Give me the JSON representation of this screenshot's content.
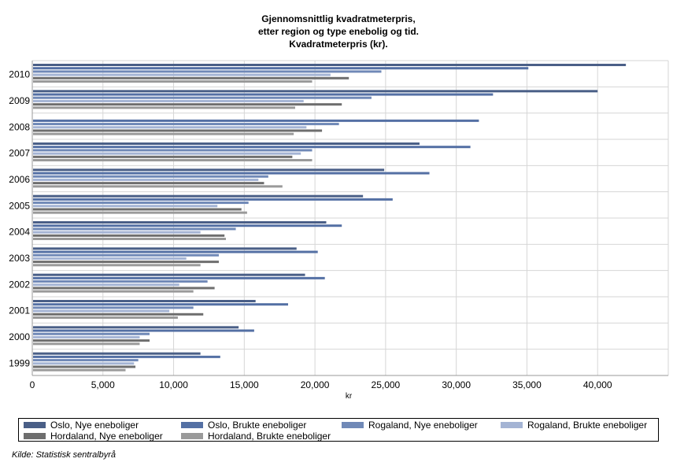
{
  "chart_data": {
    "type": "bar",
    "orientation": "horizontal",
    "title_lines": [
      "Gjennomsnittlig kvadratmeterpris,",
      "etter region og type enebolig og tid.",
      "Kvadratmeterpris (kr)."
    ],
    "xlabel": "kr",
    "xlim": [
      0,
      45000
    ],
    "xticks": [
      0,
      5000,
      10000,
      15000,
      20000,
      25000,
      30000,
      35000,
      40000
    ],
    "xtick_labels": [
      "0",
      "5,000",
      "10,000",
      "15,000",
      "20,000",
      "25,000",
      "30,000",
      "35,000",
      "40,000"
    ],
    "grid": true,
    "legend_position": "bottom",
    "categories": [
      "2010",
      "2009",
      "2008",
      "2007",
      "2006",
      "2005",
      "2004",
      "2003",
      "2002",
      "2001",
      "2000",
      "1999"
    ],
    "series": [
      {
        "name": "Oslo, Nye eneboliger",
        "color": "#4a5f87",
        "values": [
          42000,
          40000,
          null,
          27400,
          24900,
          23400,
          20800,
          18700,
          19300,
          15800,
          14600,
          11900
        ]
      },
      {
        "name": "Oslo, Brukte eneboliger",
        "color": "#5470a4",
        "values": [
          35100,
          32600,
          31600,
          31000,
          28100,
          25500,
          21900,
          20200,
          20700,
          18100,
          15700,
          13300
        ]
      },
      {
        "name": "Rogaland, Nye eneboliger",
        "color": "#7089b7",
        "values": [
          24700,
          24000,
          21700,
          19800,
          16700,
          15300,
          14400,
          13200,
          12400,
          11400,
          8300,
          7500
        ]
      },
      {
        "name": "Rogaland, Brukte eneboliger",
        "color": "#a4b4d4",
        "values": [
          21100,
          19200,
          19400,
          19000,
          16000,
          13100,
          11900,
          10900,
          10400,
          9700,
          7600,
          7200
        ]
      },
      {
        "name": "Hordaland, Nye eneboliger",
        "color": "#6e6e6e",
        "values": [
          22400,
          21900,
          20500,
          18400,
          16400,
          14800,
          13600,
          13200,
          12900,
          12100,
          8300,
          7300
        ]
      },
      {
        "name": "Hordaland, Brukte eneboliger",
        "color": "#9a9a9a",
        "values": [
          19800,
          18600,
          18500,
          19800,
          17700,
          15200,
          13700,
          11900,
          11400,
          10300,
          7600,
          6600
        ]
      }
    ]
  },
  "source_note": "Kilde: Statistisk sentralbyrå",
  "colors": {
    "grid": "#d6d6d6",
    "axis": "#999999"
  }
}
